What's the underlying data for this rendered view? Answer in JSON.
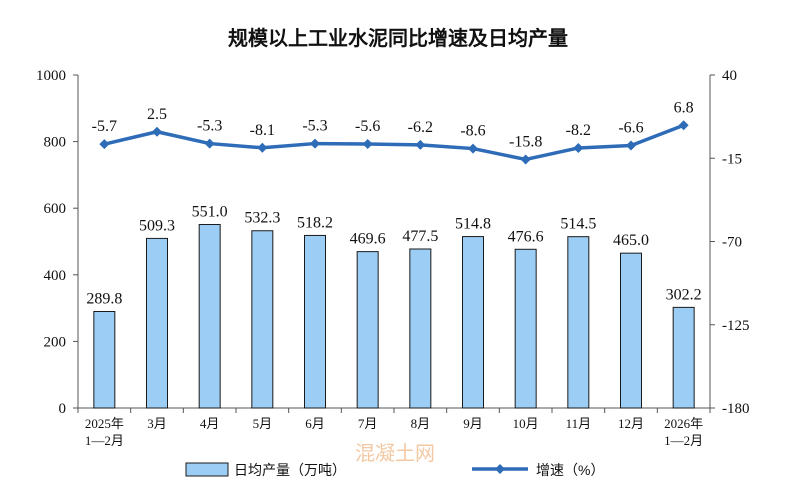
{
  "chart_data": {
    "type": "bar",
    "title": "规模以上工业水泥同比增速及日均产量",
    "categories": [
      [
        "2025年",
        "1—2月"
      ],
      [
        "3月"
      ],
      [
        "4月"
      ],
      [
        "5月"
      ],
      [
        "6月"
      ],
      [
        "7月"
      ],
      [
        "8月"
      ],
      [
        "9月"
      ],
      [
        "10月"
      ],
      [
        "11月"
      ],
      [
        "12月"
      ],
      [
        "2026年",
        "1—2月"
      ]
    ],
    "series": [
      {
        "name": "日均产量（万吨）",
        "kind": "bar",
        "axis": "left",
        "color": "#9ccdf5",
        "values": [
          289.8,
          509.3,
          551.0,
          532.3,
          518.2,
          469.6,
          477.5,
          514.8,
          476.6,
          514.5,
          465.0,
          302.2
        ],
        "labels": [
          "289.8",
          "509.3",
          "551.0",
          "532.3",
          "518.2",
          "469.6",
          "477.5",
          "514.8",
          "476.6",
          "514.5",
          "465.0",
          "302.2"
        ]
      },
      {
        "name": "增速（%）",
        "kind": "line",
        "axis": "right",
        "color": "#2e6cb8",
        "values": [
          -5.7,
          2.5,
          -5.3,
          -8.1,
          -5.3,
          -5.6,
          -6.2,
          -8.6,
          -15.8,
          -8.2,
          -6.6,
          6.8
        ],
        "labels": [
          "-5.7",
          "2.5",
          "-5.3",
          "-8.1",
          "-5.3",
          "-5.6",
          "-6.2",
          "-8.6",
          "-15.8",
          "-8.2",
          "-6.6",
          "6.8"
        ]
      }
    ],
    "y_left": {
      "range": [
        0,
        1000
      ],
      "ticks": [
        "0",
        "200",
        "400",
        "600",
        "800",
        "1000"
      ]
    },
    "y_right": {
      "range": [
        -180,
        40
      ],
      "ticks": [
        "-180",
        "-125",
        "-70",
        "-15",
        "40"
      ]
    },
    "grid": false,
    "legend_position": "bottom",
    "watermark": "混凝土网"
  }
}
